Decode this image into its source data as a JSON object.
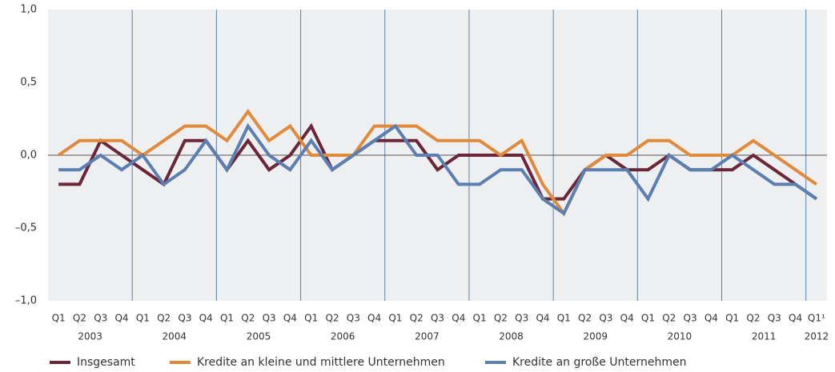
{
  "chart_data": {
    "type": "line",
    "categories": [
      "Q1",
      "Q2",
      "Q3",
      "Q4",
      "Q1",
      "Q2",
      "Q3",
      "Q4",
      "Q1",
      "Q2",
      "Q3",
      "Q4",
      "Q1",
      "Q2",
      "Q3",
      "Q4",
      "Q1",
      "Q2",
      "Q3",
      "Q4",
      "Q1",
      "Q2",
      "Q3",
      "Q4",
      "Q1",
      "Q2",
      "Q3",
      "Q4",
      "Q1",
      "Q2",
      "Q3",
      "Q4",
      "Q1",
      "Q2",
      "Q3",
      "Q4",
      "Q1¹"
    ],
    "year_labels": [
      "2003",
      "2004",
      "2005",
      "2006",
      "2007",
      "2008",
      "2009",
      "2010",
      "2011",
      "2012"
    ],
    "ylim": [
      -1,
      1
    ],
    "yticks": [
      {
        "value": 1,
        "label": "1,0"
      },
      {
        "value": 0.5,
        "label": "0,5"
      },
      {
        "value": 0,
        "label": "0,0"
      },
      {
        "value": -0.5,
        "label": "–0,5"
      },
      {
        "value": -1,
        "label": "–1,0"
      }
    ],
    "legend": "bottom",
    "series": [
      {
        "name": "Insgesamt",
        "color": "#6b2737",
        "values": [
          -0.2,
          -0.2,
          0.1,
          0.0,
          -0.1,
          -0.2,
          0.1,
          0.1,
          -0.1,
          0.1,
          -0.1,
          0.0,
          0.2,
          -0.1,
          0.0,
          0.1,
          0.1,
          0.1,
          -0.1,
          0.0,
          0.0,
          0.0,
          0.0,
          -0.3,
          -0.3,
          -0.1,
          0.0,
          -0.1,
          -0.1,
          0.0,
          -0.1,
          -0.1,
          -0.1,
          0.0,
          -0.1,
          -0.2,
          -0.3
        ]
      },
      {
        "name": "Kredite an kleine und mittlere Unternehmen",
        "color": "#e08a3c",
        "values": [
          0.0,
          0.1,
          0.1,
          0.1,
          0.0,
          0.1,
          0.2,
          0.2,
          0.1,
          0.3,
          0.1,
          0.2,
          0.0,
          0.0,
          0.0,
          0.2,
          0.2,
          0.2,
          0.1,
          0.1,
          0.1,
          0.0,
          0.1,
          -0.2,
          -0.4,
          -0.1,
          0.0,
          0.0,
          0.1,
          0.1,
          0.0,
          0.0,
          0.0,
          0.1,
          0.0,
          -0.1,
          -0.2
        ]
      },
      {
        "name": "Kredite an große Unternehmen",
        "color": "#5b7fb0",
        "values": [
          -0.1,
          -0.1,
          0.0,
          -0.1,
          0.0,
          -0.2,
          -0.1,
          0.1,
          -0.1,
          0.2,
          0.0,
          -0.1,
          0.1,
          -0.1,
          0.0,
          0.1,
          0.2,
          0.0,
          0.0,
          -0.2,
          -0.2,
          -0.1,
          -0.1,
          -0.3,
          -0.4,
          -0.1,
          -0.1,
          -0.1,
          -0.3,
          0.0,
          -0.1,
          -0.1,
          0.0,
          -0.1,
          -0.2,
          -0.2,
          -0.3
        ]
      }
    ]
  }
}
